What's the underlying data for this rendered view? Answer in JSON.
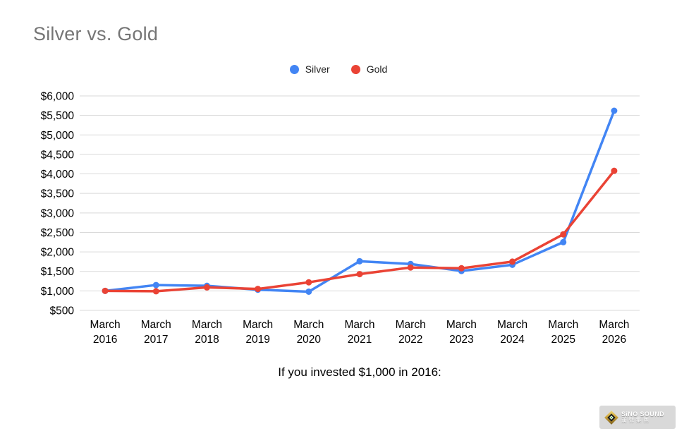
{
  "page": {
    "title": "Silver vs. Gold",
    "caption": "If you invested $1,000 in 2016:"
  },
  "chart_data": {
    "type": "line",
    "title": "Silver vs. Gold",
    "categories": [
      "March 2016",
      "March 2017",
      "March 2018",
      "March 2019",
      "March 2020",
      "March 2021",
      "March 2022",
      "March 2023",
      "March 2024",
      "March 2025",
      "March 2026"
    ],
    "series": [
      {
        "name": "Silver",
        "color": "#4285f4",
        "values": [
          1000,
          1150,
          1130,
          1030,
          980,
          1760,
          1690,
          1510,
          1670,
          2250,
          5620
        ]
      },
      {
        "name": "Gold",
        "color": "#ea4335",
        "values": [
          1000,
          990,
          1090,
          1050,
          1220,
          1430,
          1600,
          1580,
          1750,
          2450,
          4080
        ]
      }
    ],
    "xlabel": "",
    "ylabel": "",
    "ylim": [
      500,
      6000
    ],
    "ytick": 500,
    "ytick_prefix": "$",
    "grid": true,
    "legend_position": "top",
    "caption": "If you invested $1,000 in 2016:"
  },
  "style": {
    "gridline_color": "#d9d9d9",
    "axis_label_color": "#000000",
    "title_color": "#757575",
    "silver_color": "#4285f4",
    "gold_color": "#ea4335"
  },
  "watermark": {
    "brand": "SiNO SOUND",
    "brand_cn": "漢聲集團"
  }
}
